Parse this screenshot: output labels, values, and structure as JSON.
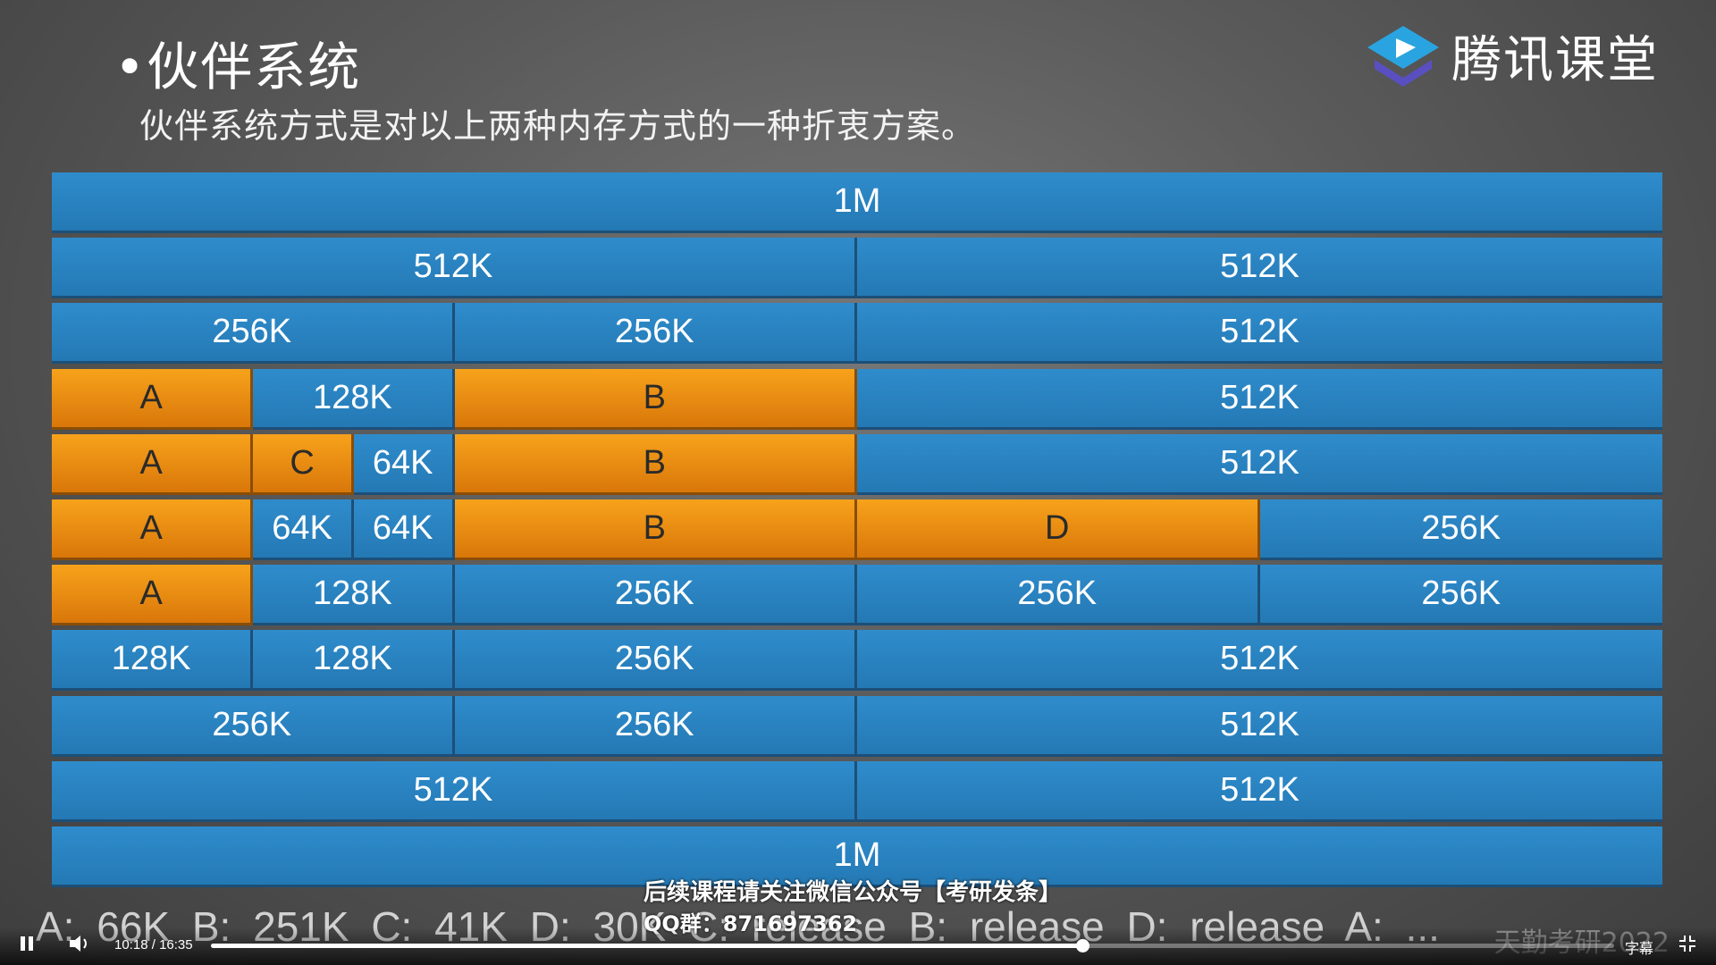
{
  "slide": {
    "title": "•伙伴系统",
    "subtitle": "伙伴系统方式是对以上两种内存方式的一种折衷方案。",
    "logo_text": "腾讯课堂"
  },
  "rows": [
    [
      {
        "label": "1M",
        "w": 1,
        "used": false
      }
    ],
    [
      {
        "label": "512K",
        "w": 0.5,
        "used": false
      },
      {
        "label": "512K",
        "w": 0.5,
        "used": false
      }
    ],
    [
      {
        "label": "256K",
        "w": 0.25,
        "used": false
      },
      {
        "label": "256K",
        "w": 0.25,
        "used": false
      },
      {
        "label": "512K",
        "w": 0.5,
        "used": false
      }
    ],
    [
      {
        "label": "A",
        "w": 0.125,
        "used": true
      },
      {
        "label": "128K",
        "w": 0.125,
        "used": false
      },
      {
        "label": "B",
        "w": 0.25,
        "used": true
      },
      {
        "label": "512K",
        "w": 0.5,
        "used": false
      }
    ],
    [
      {
        "label": "A",
        "w": 0.125,
        "used": true
      },
      {
        "label": "C",
        "w": 0.0625,
        "used": true
      },
      {
        "label": "64K",
        "w": 0.0625,
        "used": false
      },
      {
        "label": "B",
        "w": 0.25,
        "used": true
      },
      {
        "label": "512K",
        "w": 0.5,
        "used": false
      }
    ],
    [
      {
        "label": "A",
        "w": 0.125,
        "used": true
      },
      {
        "label": "64K",
        "w": 0.0625,
        "used": false
      },
      {
        "label": "64K",
        "w": 0.0625,
        "used": false
      },
      {
        "label": "B",
        "w": 0.25,
        "used": true
      },
      {
        "label": "D",
        "w": 0.25,
        "used": true
      },
      {
        "label": "256K",
        "w": 0.25,
        "used": false
      }
    ],
    [
      {
        "label": "A",
        "w": 0.125,
        "used": true
      },
      {
        "label": "128K",
        "w": 0.125,
        "used": false
      },
      {
        "label": "256K",
        "w": 0.25,
        "used": false
      },
      {
        "label": "256K",
        "w": 0.25,
        "used": false
      },
      {
        "label": "256K",
        "w": 0.25,
        "used": false
      }
    ],
    [
      {
        "label": "128K",
        "w": 0.125,
        "used": false
      },
      {
        "label": "128K",
        "w": 0.125,
        "used": false
      },
      {
        "label": "256K",
        "w": 0.25,
        "used": false
      },
      {
        "label": "512K",
        "w": 0.5,
        "used": false
      }
    ],
    [
      {
        "label": "256K",
        "w": 0.25,
        "used": false
      },
      {
        "label": "256K",
        "w": 0.25,
        "used": false
      },
      {
        "label": "512K",
        "w": 0.5,
        "used": false
      }
    ],
    [
      {
        "label": "512K",
        "w": 0.5,
        "used": false
      },
      {
        "label": "512K",
        "w": 0.5,
        "used": false
      }
    ],
    [
      {
        "label": "1M",
        "w": 1,
        "used": false
      }
    ]
  ],
  "bottom_caption": "A: 66K B: 251K C: 41K D: 30K C: release B: release D: release A: ...",
  "overlay": {
    "notice": "后续课程请关注微信公众号【考研发条】",
    "qq": "QQ群：871697362",
    "watermark": "天勤考研2022"
  },
  "player": {
    "current_time": "10:18",
    "separator": "/",
    "total_time": "16:35",
    "progress": 0.6209,
    "subtitles_label": "字幕",
    "icons": [
      "pause-icon",
      "volume-icon",
      "fullscreen-exit-icon"
    ]
  },
  "colors": {
    "free_block": "#2a82c0",
    "used_block": "#f09016",
    "background": "#5a5a5a"
  }
}
